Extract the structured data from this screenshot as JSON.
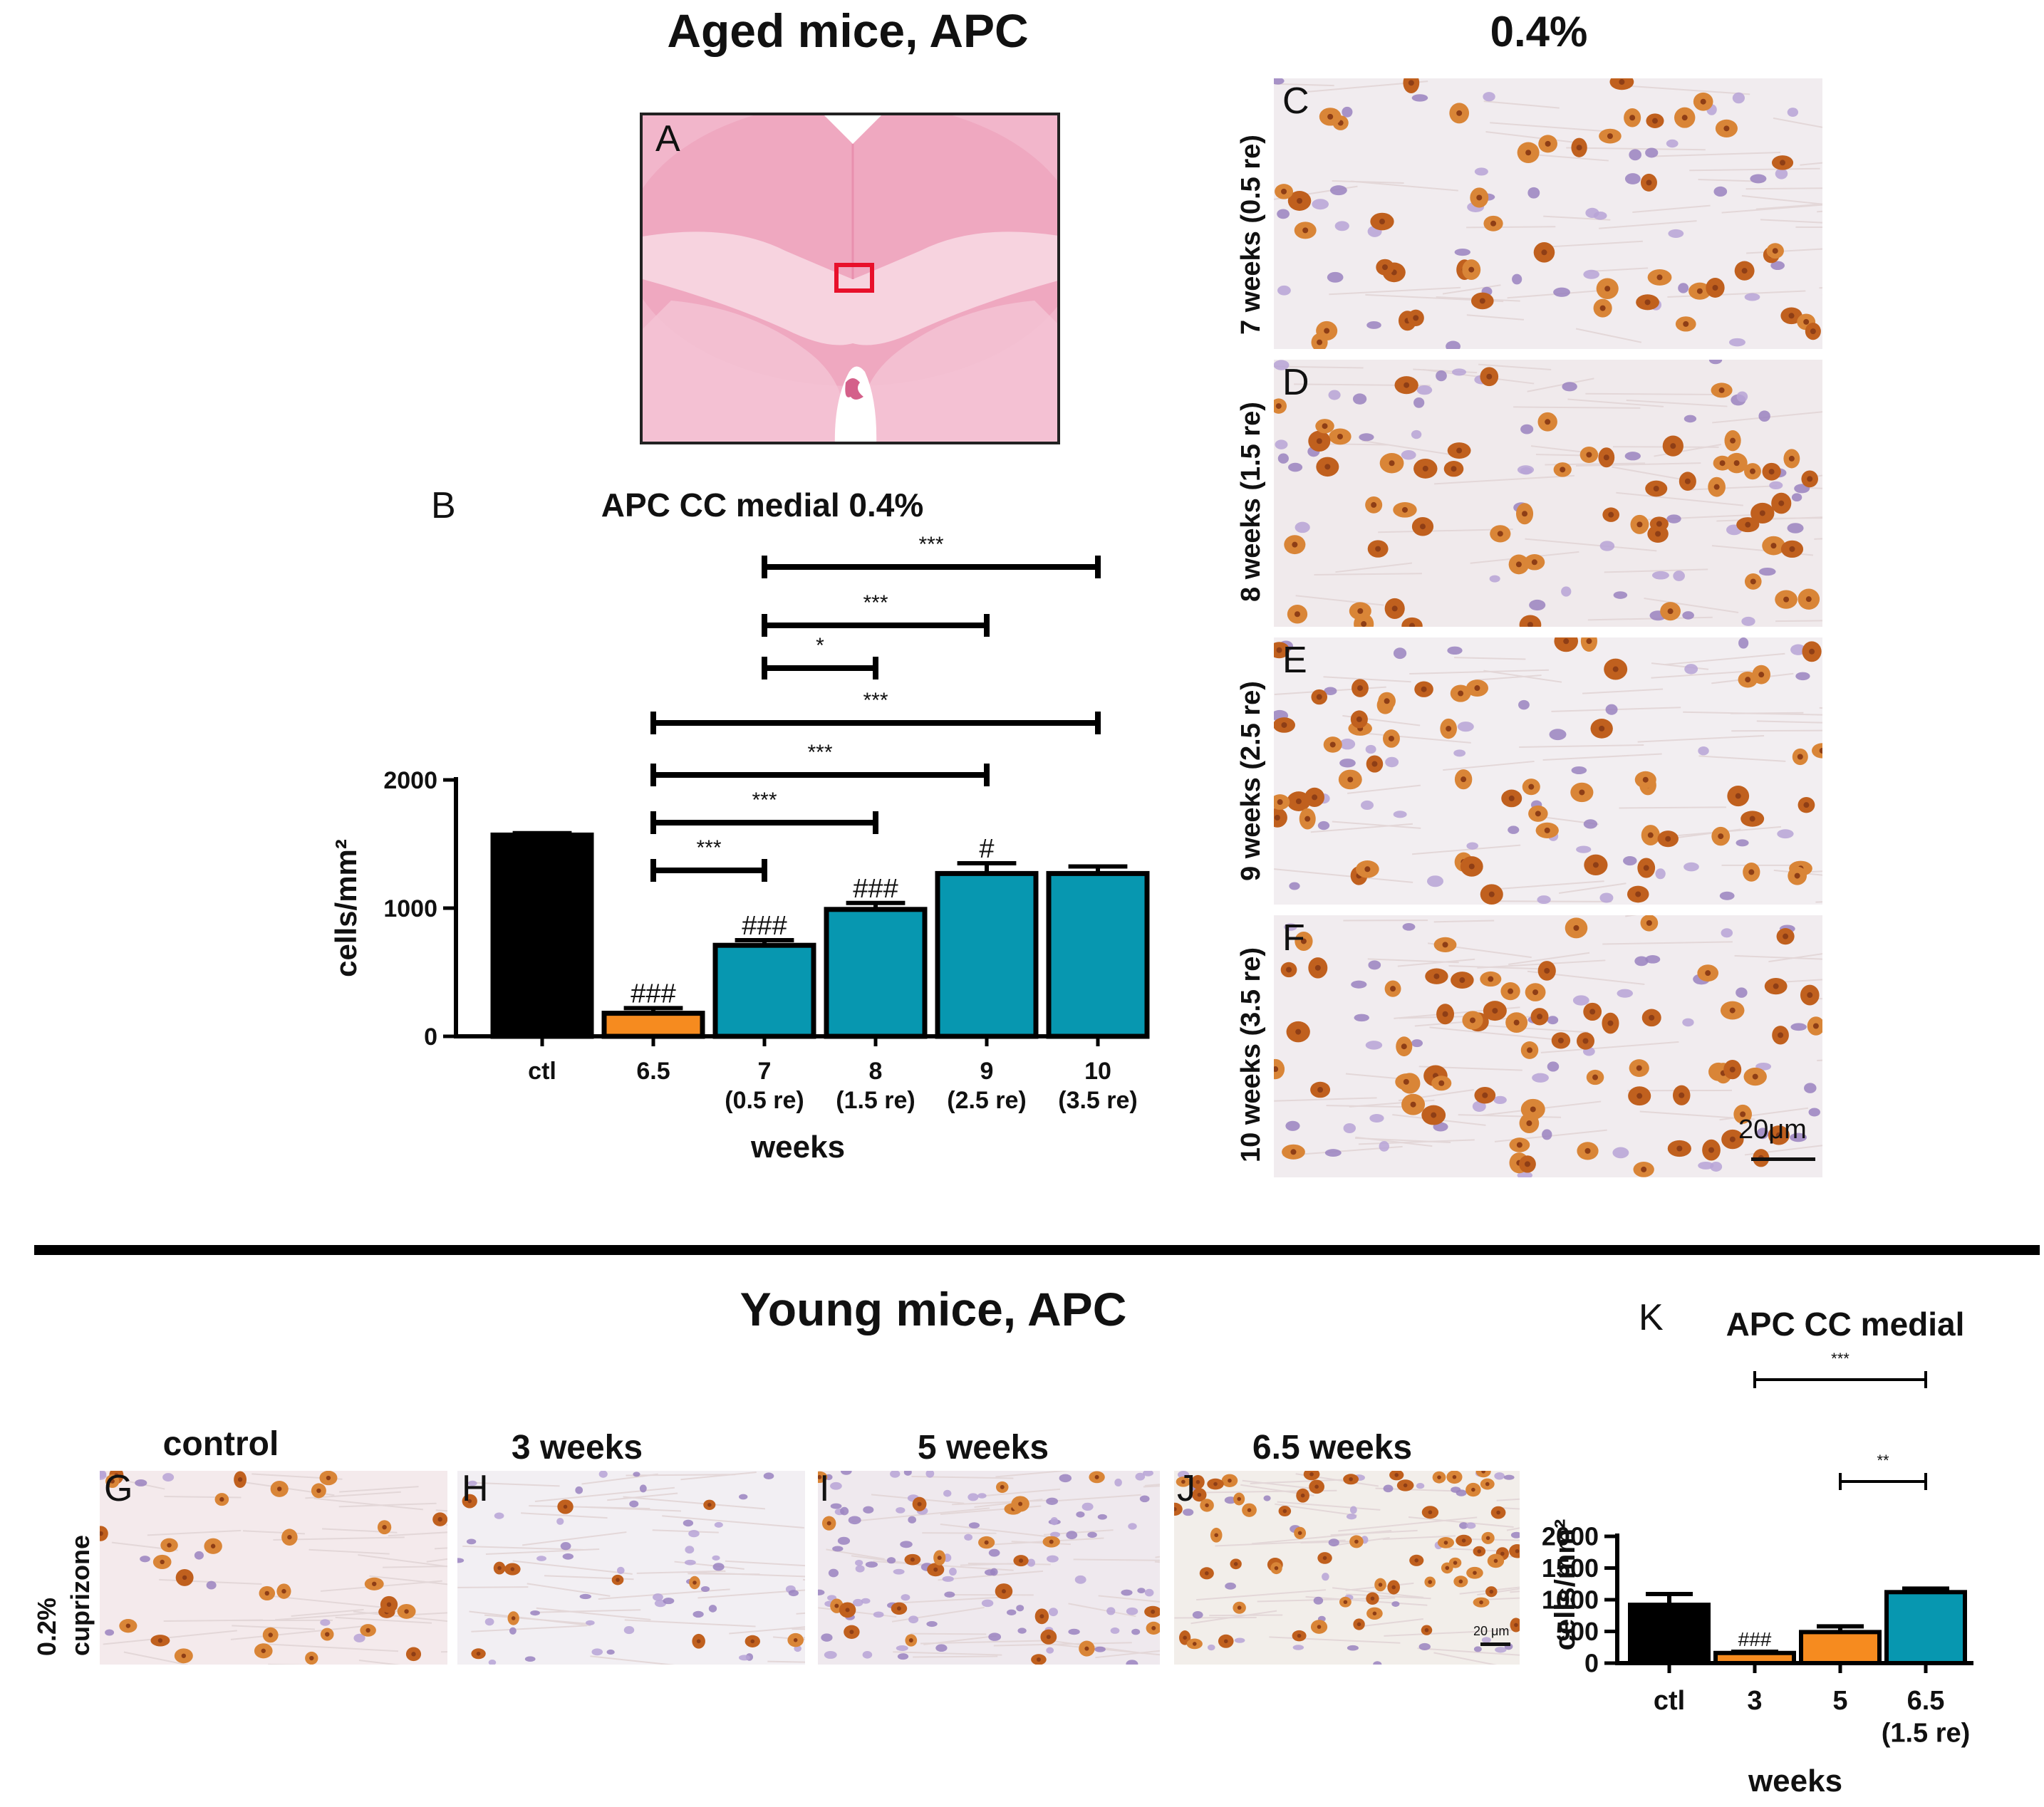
{
  "headings": {
    "aged": "Aged mice, APC",
    "conc": "0.4%",
    "young": "Young mice, APC"
  },
  "panel_letters": {
    "A": "A",
    "B": "B",
    "C": "C",
    "D": "D",
    "E": "E",
    "F": "F",
    "G": "G",
    "H": "H",
    "I": "I",
    "J": "J",
    "K": "K"
  },
  "aged_rows": [
    "7 weeks (0.5 re)",
    "8 weeks (1.5 re)",
    "9 weeks (2.5 re)",
    "10 weeks (3.5 re)"
  ],
  "scale_bar": "20μm",
  "scale_bar_small": "20 μm",
  "young_row_label": [
    "0.2%",
    "cuprizone"
  ],
  "young_images": [
    "control",
    "3 weeks",
    "5 weeks",
    "6.5 weeks"
  ],
  "colors": {
    "black": "#000000",
    "orange": "#F68B1F",
    "teal": "#0797B0",
    "red_box": "#E8102B"
  },
  "chart_data": [
    {
      "id": "B",
      "type": "bar",
      "title": "APC CC medial 0.4%",
      "ylabel": "cells/mm²",
      "xlabel": "weeks",
      "ylim": [
        0,
        2000
      ],
      "yticks": [
        "0",
        "1000",
        "2000"
      ],
      "categories": [
        [
          "ctl"
        ],
        [
          "6.5"
        ],
        [
          "7",
          "(0.5 re)"
        ],
        [
          "8",
          "(1.5 re)"
        ],
        [
          "9",
          "(2.5 re)"
        ],
        [
          "10",
          "(3.5 re)"
        ]
      ],
      "values": [
        1570,
        180,
        710,
        990,
        1270,
        1270
      ],
      "errors": [
        15,
        40,
        40,
        50,
        80,
        55
      ],
      "bar_colors": [
        "#000000",
        "#F68B1F",
        "#0797B0",
        "#0797B0",
        "#0797B0",
        "#0797B0"
      ],
      "bar_labels": [
        "",
        "###",
        "###",
        "###",
        "#",
        ""
      ],
      "brackets": [
        {
          "from": 2,
          "to": 5,
          "label": "***"
        },
        {
          "from": 2,
          "to": 4,
          "label": "***"
        },
        {
          "from": 2,
          "to": 3,
          "label": "*"
        },
        {
          "from": 1,
          "to": 5,
          "label": "***"
        },
        {
          "from": 1,
          "to": 4,
          "label": "***"
        },
        {
          "from": 1,
          "to": 3,
          "label": "***"
        },
        {
          "from": 1,
          "to": 2,
          "label": "***"
        }
      ]
    },
    {
      "id": "K",
      "type": "bar",
      "title": "APC CC medial",
      "ylabel": "cells/mm²",
      "xlabel": "weeks",
      "ylim": [
        0,
        2000
      ],
      "yticks": [
        "0",
        "500",
        "1000",
        "1500",
        "2000"
      ],
      "categories": [
        [
          "ctl"
        ],
        [
          "3"
        ],
        [
          "5"
        ],
        [
          "6.5",
          "(1.5 re)"
        ]
      ],
      "values": [
        920,
        160,
        490,
        1120
      ],
      "errors": [
        170,
        20,
        90,
        55
      ],
      "bar_colors": [
        "#000000",
        "#F68B1F",
        "#F68B1F",
        "#0797B0"
      ],
      "bar_labels": [
        "",
        "###",
        "",
        ""
      ],
      "brackets": [
        {
          "from": 1,
          "to": 3,
          "label": "***"
        },
        {
          "from": 2,
          "to": 3,
          "label": "**"
        }
      ]
    }
  ]
}
